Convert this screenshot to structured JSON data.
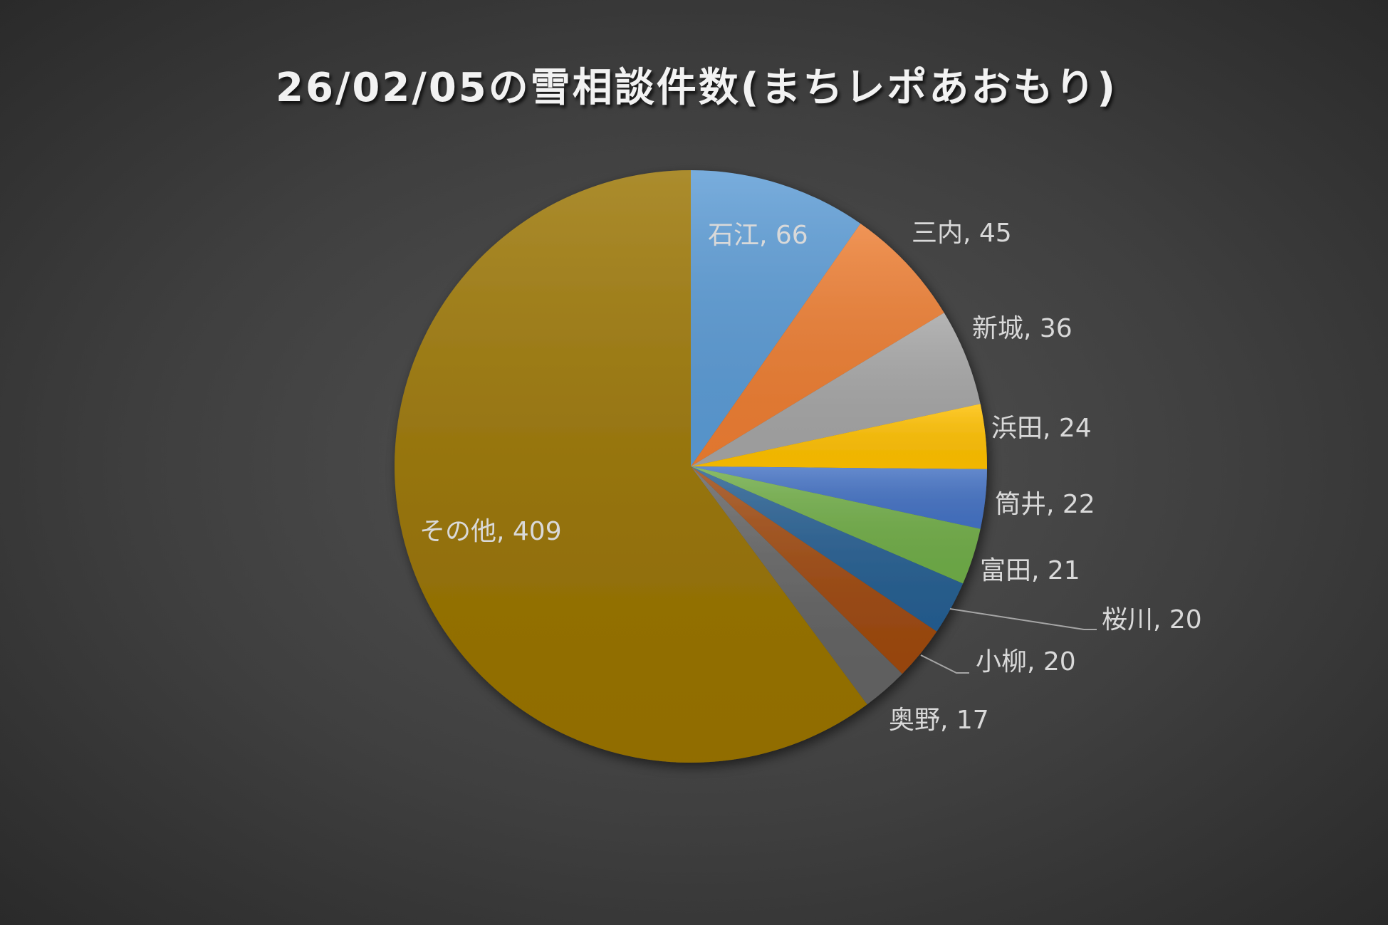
{
  "chart_data": {
    "type": "pie",
    "title": "26/02/05の雪相談件数(まちレポあおもり)",
    "start_angle": "12 o'clock, clockwise",
    "slices": [
      {
        "label": "石江",
        "value": 66,
        "color": "#5b9bd5"
      },
      {
        "label": "三内",
        "value": 45,
        "color": "#ed7d31"
      },
      {
        "label": "新城",
        "value": 36,
        "color": "#a5a5a5"
      },
      {
        "label": "浜田",
        "value": 24,
        "color": "#ffc000"
      },
      {
        "label": "筒井",
        "value": 22,
        "color": "#4472c4"
      },
      {
        "label": "富田",
        "value": 21,
        "color": "#70ad47"
      },
      {
        "label": "桜川",
        "value": 20,
        "color": "#255e91"
      },
      {
        "label": "小柳",
        "value": 20,
        "color": "#9e480e"
      },
      {
        "label": "奥野",
        "value": 17,
        "color": "#636363"
      },
      {
        "label": "その他",
        "value": 409,
        "color": "#997300"
      }
    ],
    "legend": "none"
  }
}
